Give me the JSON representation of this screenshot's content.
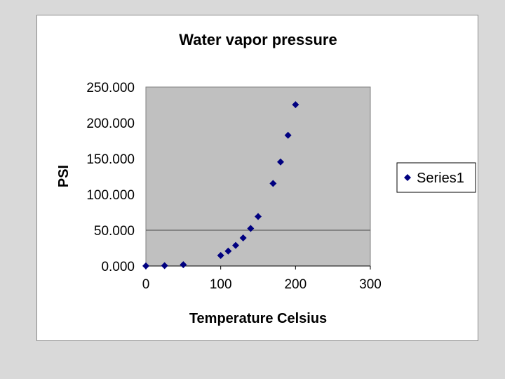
{
  "chart_data": {
    "type": "scatter",
    "title": "Water vapor pressure",
    "xlabel": "Temperature Celsius",
    "ylabel": "PSI",
    "xlim": [
      0,
      300
    ],
    "ylim": [
      0,
      250
    ],
    "x_ticks": [
      "0",
      "100",
      "200",
      "300"
    ],
    "y_ticks": [
      "0.000",
      "50.000",
      "100.000",
      "150.000",
      "200.000",
      "250.000"
    ],
    "grid": "horizontal at 50.000 only",
    "legend_position": "right",
    "plot_background": "#c0c0c0",
    "series": [
      {
        "name": "Series1",
        "color": "#000080",
        "marker": "diamond",
        "x": [
          0,
          25,
          50,
          100,
          110,
          120,
          130,
          140,
          150,
          170,
          180,
          190,
          200
        ],
        "y": [
          0.1,
          0.5,
          1.8,
          14.7,
          20.8,
          28.8,
          39.2,
          52.4,
          69.1,
          115.3,
          145.4,
          182.6,
          225.4
        ]
      }
    ]
  }
}
